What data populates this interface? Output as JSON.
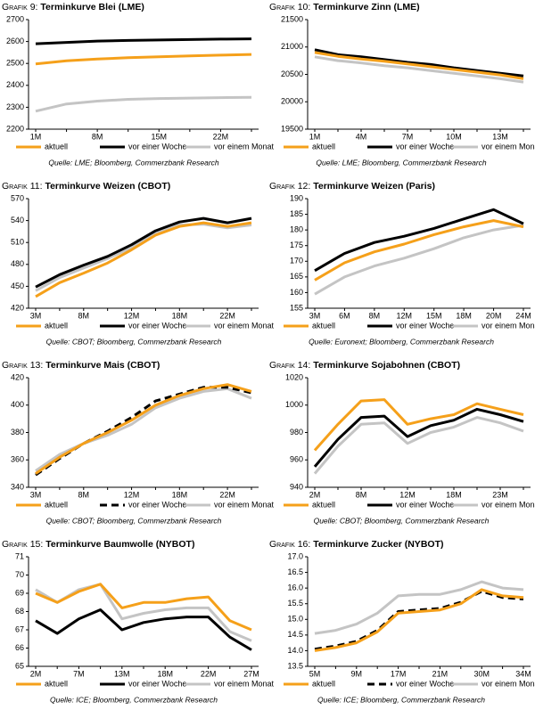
{
  "chart_data": [
    {
      "type": "line",
      "label": "Grafik 9:",
      "title": "Terminkurve Blei (LME)",
      "source": "Quelle: LME; Bloomberg, Commerzbank Research",
      "categories": [
        "1M",
        null,
        "8M",
        null,
        "15M",
        null,
        "22M",
        null
      ],
      "ylim": [
        2200,
        2700
      ],
      "yticks": [
        2200,
        2300,
        2400,
        2500,
        2600,
        2700
      ],
      "series": [
        {
          "name": "aktuell",
          "color": "#f5a01a",
          "values": [
            2498,
            2512,
            2520,
            2526,
            2530,
            2534,
            2538,
            2541
          ]
        },
        {
          "name": "vor einer Woche",
          "color": "#000000",
          "values": [
            2590,
            2596,
            2602,
            2605,
            2607,
            2609,
            2611,
            2612
          ]
        },
        {
          "name": "vor einem Monat",
          "color": "#c4c4c4",
          "values": [
            2282,
            2315,
            2328,
            2336,
            2340,
            2342,
            2344,
            2345
          ]
        }
      ]
    },
    {
      "type": "line",
      "label": "Grafik 10:",
      "title": "Terminkurve Zinn (LME)",
      "source": "Quelle: LME; Bloomberg, Commerzbank Research",
      "categories": [
        "1M",
        null,
        "4M",
        null,
        "7M",
        null,
        "10M",
        null,
        "13M",
        null
      ],
      "ylim": [
        19500,
        21500
      ],
      "yticks": [
        19500,
        20000,
        20500,
        21000,
        21500
      ],
      "series": [
        {
          "name": "aktuell",
          "color": "#f5a01a",
          "values": [
            20900,
            20830,
            20780,
            20740,
            20690,
            20640,
            20590,
            20540,
            20490,
            20420
          ]
        },
        {
          "name": "vor einer Woche",
          "color": "#000000",
          "values": [
            20950,
            20860,
            20820,
            20770,
            20720,
            20680,
            20620,
            20570,
            20520,
            20470
          ]
        },
        {
          "name": "vor einem Monat",
          "color": "#c4c4c4",
          "values": [
            20820,
            20750,
            20710,
            20660,
            20620,
            20570,
            20520,
            20470,
            20420,
            20360
          ]
        }
      ]
    },
    {
      "type": "line",
      "label": "Grafik 11:",
      "title": "Terminkurve Weizen (CBOT)",
      "source": "Quelle: CBOT; Bloomberg, Commerzbank Research",
      "categories": [
        "3M",
        null,
        "8M",
        null,
        "12M",
        null,
        "18M",
        null,
        "22M",
        null
      ],
      "ylim": [
        420,
        570
      ],
      "yticks": [
        420,
        450,
        480,
        510,
        540,
        570
      ],
      "series": [
        {
          "name": "aktuell",
          "color": "#f5a01a",
          "values": [
            436,
            455,
            468,
            482,
            500,
            520,
            532,
            537,
            532,
            537
          ]
        },
        {
          "name": "vor einer Woche",
          "color": "#000000",
          "values": [
            449,
            466,
            479,
            491,
            507,
            526,
            538,
            543,
            537,
            543
          ]
        },
        {
          "name": "vor einem Monat",
          "color": "#c4c4c4",
          "values": [
            444,
            462,
            475,
            488,
            503,
            522,
            534,
            535,
            530,
            534
          ]
        }
      ]
    },
    {
      "type": "line",
      "label": "Grafik 12:",
      "title": "Terminkurve Weizen (Paris)",
      "source": "Quelle: Euronext; Bloomberg, Commerzbank Research",
      "categories": [
        "3M",
        "6M",
        "8M",
        "12M",
        "15M",
        "18M",
        "20M",
        "24M"
      ],
      "ylim": [
        155,
        190
      ],
      "yticks": [
        155,
        160,
        165,
        170,
        175,
        180,
        185,
        190
      ],
      "series": [
        {
          "name": "aktuell",
          "color": "#f5a01a",
          "values": [
            164,
            169.5,
            173,
            175.5,
            178.5,
            181,
            183,
            181
          ]
        },
        {
          "name": "vor einer Woche",
          "color": "#000000",
          "values": [
            167,
            172.5,
            176,
            178,
            180.5,
            183.5,
            186.5,
            182
          ]
        },
        {
          "name": "vor einem Monat",
          "color": "#c4c4c4",
          "values": [
            159.5,
            165,
            168.5,
            171,
            174,
            177.5,
            180,
            181.5
          ]
        }
      ]
    },
    {
      "type": "line",
      "label": "Grafik 13:",
      "title": "Terminkurve Mais (CBOT)",
      "source": "Quelle: CBOT; Bloomberg, Commerzbank Research",
      "categories": [
        "3M",
        null,
        "8M",
        null,
        "12M",
        null,
        "18M",
        null,
        "22M",
        null
      ],
      "ylim": [
        340,
        420
      ],
      "yticks": [
        340,
        360,
        380,
        400,
        420
      ],
      "series": [
        {
          "name": "aktuell",
          "color": "#f5a01a",
          "values": [
            350,
            362,
            372,
            380,
            389,
            400,
            407,
            412,
            415,
            410
          ]
        },
        {
          "name": "vor einer Woche",
          "color": "#000000",
          "dashed": true,
          "values": [
            349,
            361,
            372,
            381,
            391,
            403,
            408,
            413,
            413,
            409
          ]
        },
        {
          "name": "vor einem Monat",
          "color": "#c4c4c4",
          "values": [
            352,
            364,
            372,
            378,
            386,
            398,
            405,
            410,
            412,
            405
          ]
        }
      ]
    },
    {
      "type": "line",
      "label": "Grafik 14:",
      "title": "Terminkurve Sojabohnen (CBOT)",
      "source": "Quelle: CBOT; Bloomberg, Commerzbank Research",
      "categories": [
        "2M",
        null,
        "8M",
        null,
        "12M",
        null,
        "18M",
        null,
        "23M",
        null
      ],
      "ylim": [
        940,
        1020
      ],
      "yticks": [
        940,
        960,
        980,
        1000,
        1020
      ],
      "series": [
        {
          "name": "aktuell",
          "color": "#f5a01a",
          "values": [
            967,
            986,
            1003,
            1004,
            986,
            990,
            993,
            1001,
            997,
            993
          ]
        },
        {
          "name": "vor einer Woche",
          "color": "#000000",
          "values": [
            955,
            975,
            991,
            992,
            977,
            985,
            989,
            997,
            993,
            988
          ]
        },
        {
          "name": "vor einem Monat",
          "color": "#c4c4c4",
          "values": [
            950,
            970,
            986,
            987,
            972,
            980,
            984,
            991,
            987,
            981
          ]
        }
      ]
    },
    {
      "type": "line",
      "label": "Grafik 15:",
      "title": "Terminkurve Baumwolle (NYBOT)",
      "source": "Quelle: ICE; Bloomberg, Commerzbank Research",
      "categories": [
        "2M",
        null,
        "7M",
        null,
        "13M",
        null,
        "18M",
        null,
        "22M",
        null,
        "27M"
      ],
      "ylim": [
        65,
        71
      ],
      "yticks": [
        65,
        66,
        67,
        68,
        69,
        70,
        71
      ],
      "series": [
        {
          "name": "aktuell",
          "color": "#f5a01a",
          "values": [
            69.0,
            68.5,
            69.1,
            69.5,
            68.2,
            68.5,
            68.5,
            68.7,
            68.8,
            67.5,
            67.0
          ]
        },
        {
          "name": "vor einer Woche",
          "color": "#000000",
          "values": [
            67.5,
            66.8,
            67.6,
            68.1,
            67.0,
            67.4,
            67.6,
            67.7,
            67.7,
            66.6,
            65.9
          ]
        },
        {
          "name": "vor einem Monat",
          "color": "#c4c4c4",
          "values": [
            69.2,
            68.5,
            69.2,
            69.5,
            67.6,
            67.9,
            68.1,
            68.2,
            68.2,
            66.9,
            66.4
          ]
        }
      ]
    },
    {
      "type": "line",
      "label": "Grafik 16:",
      "title": "Terminkurve Zucker (NYBOT)",
      "source": "Quelle: ICE; Bloomberg, Commerzbank Research",
      "categories": [
        "5M",
        null,
        "9M",
        null,
        "17M",
        null,
        "21M",
        null,
        "30M",
        null,
        "34M"
      ],
      "ylim": [
        13.5,
        17
      ],
      "yticks": [
        13.5,
        {
          "value": 14,
          "label": "14.0"
        },
        14.5,
        {
          "value": 15,
          "label": "15.0"
        },
        15.5,
        {
          "value": 16,
          "label": "16.0"
        },
        16.5,
        {
          "value": 17,
          "label": "17.0"
        }
      ],
      "series": [
        {
          "name": "aktuell",
          "color": "#f5a01a",
          "values": [
            14.0,
            14.1,
            14.25,
            14.6,
            15.2,
            15.25,
            15.3,
            15.5,
            15.95,
            15.75,
            15.7
          ]
        },
        {
          "name": "vor einer Woche",
          "color": "#000000",
          "dashed": true,
          "values": [
            14.05,
            14.15,
            14.3,
            14.65,
            15.25,
            15.3,
            15.35,
            15.55,
            15.9,
            15.7,
            15.65
          ]
        },
        {
          "name": "vor einem Monat",
          "color": "#c4c4c4",
          "values": [
            14.55,
            14.65,
            14.85,
            15.2,
            15.75,
            15.8,
            15.8,
            15.95,
            16.2,
            16.0,
            15.95
          ]
        }
      ]
    }
  ]
}
